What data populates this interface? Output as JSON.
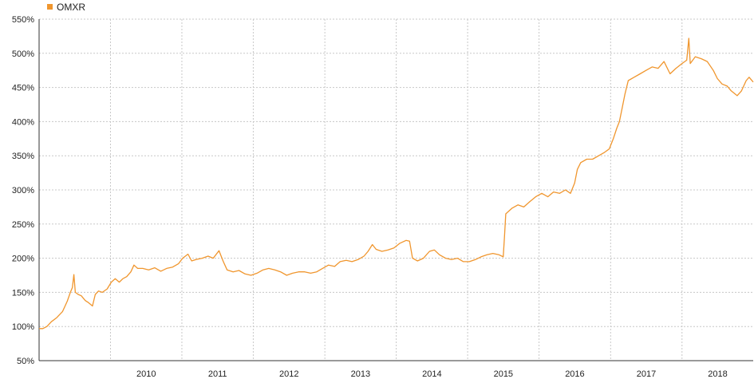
{
  "chart_data": {
    "type": "line",
    "title": "",
    "xlabel": "",
    "ylabel": "",
    "legend": {
      "placement": "top-left"
    },
    "grid": true,
    "x_tick_labels": [
      "2010",
      "2011",
      "2012",
      "2013",
      "2014",
      "2015",
      "2016",
      "2017",
      "2018"
    ],
    "y_tick_labels": [
      "50%",
      "100%",
      "150%",
      "200%",
      "250%",
      "300%",
      "350%",
      "400%",
      "450%",
      "500%",
      "550%"
    ],
    "ylim": [
      50,
      550
    ],
    "xlim": [
      "2009-01-01",
      "2018-12-31"
    ],
    "series": [
      {
        "name": "OMXR",
        "color": "#f0962e",
        "points": [
          [
            "2009-01-01",
            97
          ],
          [
            "2009-01-20",
            97
          ],
          [
            "2009-02-10",
            100
          ],
          [
            "2009-03-05",
            107
          ],
          [
            "2009-04-01",
            113
          ],
          [
            "2009-05-01",
            122
          ],
          [
            "2009-05-25",
            137
          ],
          [
            "2009-06-10",
            150
          ],
          [
            "2009-06-20",
            157
          ],
          [
            "2009-06-28",
            176
          ],
          [
            "2009-07-05",
            150
          ],
          [
            "2009-07-20",
            147
          ],
          [
            "2009-08-05",
            145
          ],
          [
            "2009-08-25",
            138
          ],
          [
            "2009-09-10",
            135
          ],
          [
            "2009-10-01",
            130
          ],
          [
            "2009-10-15",
            147
          ],
          [
            "2009-11-01",
            152
          ],
          [
            "2009-11-20",
            150
          ],
          [
            "2009-12-15",
            155
          ],
          [
            "2010-01-05",
            165
          ],
          [
            "2010-01-25",
            170
          ],
          [
            "2010-02-15",
            165
          ],
          [
            "2010-03-05",
            170
          ],
          [
            "2010-03-25",
            173
          ],
          [
            "2010-04-15",
            180
          ],
          [
            "2010-05-01",
            190
          ],
          [
            "2010-05-20",
            185
          ],
          [
            "2010-06-15",
            185
          ],
          [
            "2010-07-15",
            183
          ],
          [
            "2010-08-15",
            186
          ],
          [
            "2010-09-15",
            181
          ],
          [
            "2010-10-15",
            185
          ],
          [
            "2010-11-15",
            187
          ],
          [
            "2010-12-15",
            192
          ],
          [
            "2011-01-05",
            200
          ],
          [
            "2011-02-01",
            206
          ],
          [
            "2011-02-20",
            196
          ],
          [
            "2011-03-15",
            198
          ],
          [
            "2011-04-15",
            200
          ],
          [
            "2011-05-15",
            203
          ],
          [
            "2011-06-10",
            200
          ],
          [
            "2011-07-10",
            211
          ],
          [
            "2011-08-01",
            195
          ],
          [
            "2011-08-20",
            183
          ],
          [
            "2011-09-20",
            180
          ],
          [
            "2011-10-20",
            182
          ],
          [
            "2011-11-20",
            177
          ],
          [
            "2011-12-20",
            175
          ],
          [
            "2012-01-20",
            178
          ],
          [
            "2012-02-20",
            183
          ],
          [
            "2012-03-20",
            185
          ],
          [
            "2012-04-20",
            183
          ],
          [
            "2012-05-20",
            180
          ],
          [
            "2012-06-20",
            175
          ],
          [
            "2012-07-20",
            178
          ],
          [
            "2012-08-20",
            180
          ],
          [
            "2012-09-20",
            180
          ],
          [
            "2012-10-20",
            178
          ],
          [
            "2012-11-20",
            180
          ],
          [
            "2012-12-20",
            185
          ],
          [
            "2013-01-20",
            190
          ],
          [
            "2013-02-20",
            188
          ],
          [
            "2013-03-20",
            195
          ],
          [
            "2013-04-20",
            197
          ],
          [
            "2013-05-20",
            195
          ],
          [
            "2013-06-20",
            198
          ],
          [
            "2013-07-20",
            203
          ],
          [
            "2013-08-10",
            210
          ],
          [
            "2013-09-01",
            220
          ],
          [
            "2013-09-20",
            213
          ],
          [
            "2013-10-20",
            210
          ],
          [
            "2013-11-20",
            212
          ],
          [
            "2013-12-20",
            215
          ],
          [
            "2014-01-20",
            222
          ],
          [
            "2014-02-20",
            226
          ],
          [
            "2014-03-10",
            225
          ],
          [
            "2014-03-25",
            200
          ],
          [
            "2014-04-20",
            196
          ],
          [
            "2014-05-20",
            200
          ],
          [
            "2014-06-20",
            210
          ],
          [
            "2014-07-15",
            212
          ],
          [
            "2014-08-10",
            205
          ],
          [
            "2014-09-10",
            200
          ],
          [
            "2014-10-10",
            198
          ],
          [
            "2014-11-10",
            200
          ],
          [
            "2014-12-10",
            195
          ],
          [
            "2015-01-10",
            195
          ],
          [
            "2015-02-10",
            198
          ],
          [
            "2015-03-10",
            202
          ],
          [
            "2015-04-10",
            205
          ],
          [
            "2015-05-10",
            207
          ],
          [
            "2015-06-10",
            205
          ],
          [
            "2015-06-25",
            203
          ],
          [
            "2015-07-02",
            202
          ],
          [
            "2015-07-08",
            230
          ],
          [
            "2015-07-15",
            265
          ],
          [
            "2015-08-15",
            273
          ],
          [
            "2015-09-15",
            278
          ],
          [
            "2015-10-15",
            275
          ],
          [
            "2015-11-15",
            283
          ],
          [
            "2015-12-15",
            290
          ],
          [
            "2016-01-15",
            295
          ],
          [
            "2016-02-15",
            290
          ],
          [
            "2016-03-15",
            297
          ],
          [
            "2016-04-15",
            295
          ],
          [
            "2016-05-15",
            300
          ],
          [
            "2016-06-10",
            295
          ],
          [
            "2016-07-01",
            310
          ],
          [
            "2016-07-15",
            330
          ],
          [
            "2016-08-01",
            340
          ],
          [
            "2016-09-01",
            345
          ],
          [
            "2016-10-01",
            345
          ],
          [
            "2016-11-01",
            350
          ],
          [
            "2016-12-01",
            355
          ],
          [
            "2016-12-25",
            360
          ],
          [
            "2017-01-15",
            375
          ],
          [
            "2017-02-01",
            390
          ],
          [
            "2017-02-15",
            400
          ],
          [
            "2017-03-01",
            420
          ],
          [
            "2017-03-15",
            440
          ],
          [
            "2017-04-01",
            460
          ],
          [
            "2017-05-01",
            465
          ],
          [
            "2017-06-01",
            470
          ],
          [
            "2017-07-01",
            475
          ],
          [
            "2017-08-01",
            480
          ],
          [
            "2017-09-01",
            478
          ],
          [
            "2017-10-01",
            488
          ],
          [
            "2017-11-01",
            470
          ],
          [
            "2017-12-01",
            478
          ],
          [
            "2018-01-01",
            485
          ],
          [
            "2018-01-25",
            490
          ],
          [
            "2018-02-05",
            522
          ],
          [
            "2018-02-12",
            485
          ],
          [
            "2018-03-10",
            495
          ],
          [
            "2018-04-10",
            492
          ],
          [
            "2018-05-10",
            488
          ],
          [
            "2018-06-10",
            475
          ],
          [
            "2018-07-01",
            463
          ],
          [
            "2018-07-25",
            455
          ],
          [
            "2018-08-20",
            452
          ],
          [
            "2018-09-10",
            445
          ],
          [
            "2018-10-10",
            438
          ],
          [
            "2018-11-01",
            445
          ],
          [
            "2018-11-25",
            460
          ],
          [
            "2018-12-10",
            465
          ],
          [
            "2018-12-31",
            458
          ]
        ]
      }
    ]
  }
}
